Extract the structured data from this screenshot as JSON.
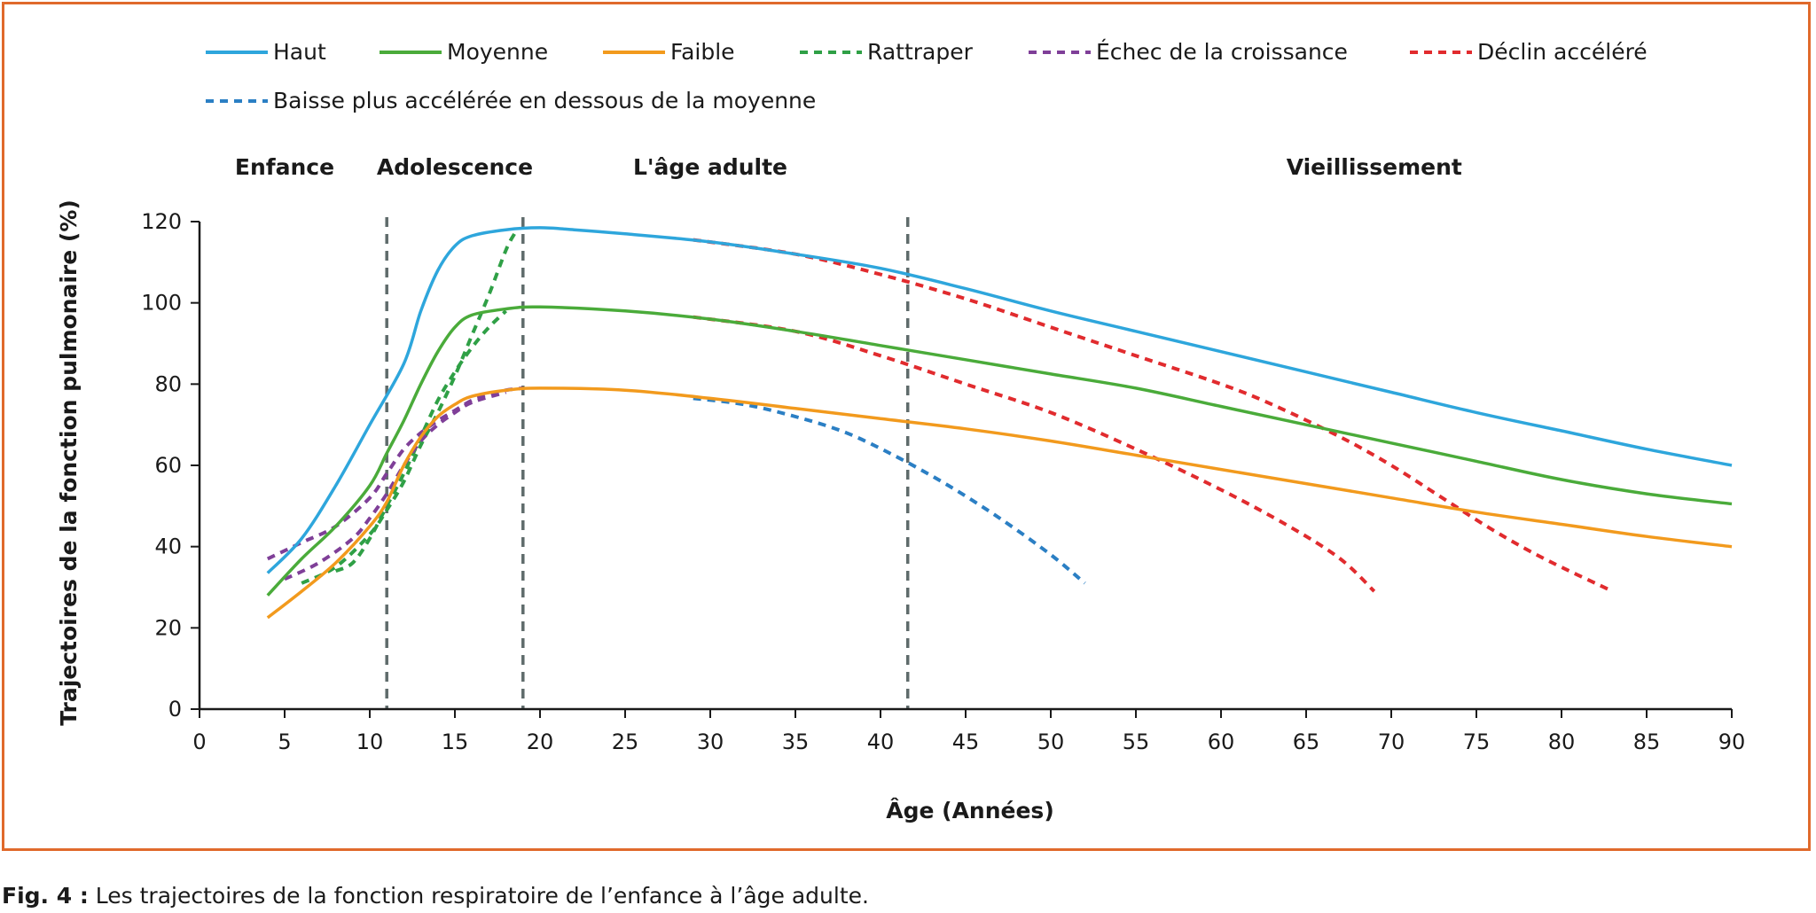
{
  "caption": {
    "label": "Fig. 4 :",
    "text": " Les trajectoires de la fonction respiratoire de l’enfance à l’âge adulte."
  },
  "colors": {
    "frame": "#e06a2c",
    "axis": "#1a1a1a",
    "phase_divider": "#5f6b6b"
  },
  "chart_data": {
    "type": "line",
    "title": "",
    "xlabel": "Âge (Années)",
    "ylabel": "Trajectoires de la fonction pulmonaire (%)",
    "xlim": [
      0,
      90
    ],
    "ylim": [
      0,
      120
    ],
    "xticks": [
      0,
      5,
      10,
      15,
      20,
      25,
      30,
      35,
      40,
      45,
      50,
      55,
      60,
      65,
      70,
      75,
      80,
      85,
      90
    ],
    "yticks": [
      0,
      20,
      40,
      60,
      80,
      100,
      120
    ],
    "grid": false,
    "legend_position": "top",
    "phases": [
      {
        "label": "Enfance",
        "label_x": 5
      },
      {
        "label": "Adolescence",
        "label_x": 15
      },
      {
        "label": "L'âge adulte",
        "label_x": 30
      },
      {
        "label": "Vieillissement",
        "label_x": 69
      }
    ],
    "phase_boundaries": [
      11,
      19,
      41.6
    ],
    "series": [
      {
        "name": "Haut",
        "color": "#2ea6dc",
        "dashed": false,
        "points": [
          [
            4,
            33.5
          ],
          [
            6,
            42
          ],
          [
            8,
            55
          ],
          [
            10,
            70
          ],
          [
            12,
            85
          ],
          [
            13,
            98
          ],
          [
            14,
            108
          ],
          [
            15,
            114
          ],
          [
            16,
            116.5
          ],
          [
            18,
            118
          ],
          [
            20,
            118.5
          ],
          [
            22,
            118
          ],
          [
            25,
            117
          ],
          [
            30,
            115
          ],
          [
            35,
            112
          ],
          [
            40,
            108.5
          ],
          [
            45,
            103.5
          ],
          [
            50,
            98
          ],
          [
            55,
            93
          ],
          [
            60,
            88
          ],
          [
            65,
            83
          ],
          [
            70,
            78
          ],
          [
            75,
            73
          ],
          [
            80,
            68.5
          ],
          [
            85,
            64
          ],
          [
            90,
            60
          ]
        ]
      },
      {
        "name": "Moyenne",
        "color": "#4aab3a",
        "dashed": false,
        "points": [
          [
            4,
            28
          ],
          [
            6,
            37
          ],
          [
            8,
            45
          ],
          [
            10,
            55
          ],
          [
            11,
            63
          ],
          [
            12,
            71
          ],
          [
            13,
            80
          ],
          [
            14,
            88
          ],
          [
            15,
            94
          ],
          [
            16,
            97
          ],
          [
            18,
            98.5
          ],
          [
            20,
            99
          ],
          [
            25,
            98
          ],
          [
            30,
            96
          ],
          [
            35,
            93
          ],
          [
            40,
            89.5
          ],
          [
            45,
            86
          ],
          [
            50,
            82.5
          ],
          [
            55,
            79
          ],
          [
            60,
            74.5
          ],
          [
            65,
            70
          ],
          [
            70,
            65.5
          ],
          [
            75,
            61
          ],
          [
            80,
            56.5
          ],
          [
            85,
            53
          ],
          [
            90,
            50.5
          ]
        ]
      },
      {
        "name": "Faible",
        "color": "#f29a1d",
        "dashed": false,
        "points": [
          [
            4,
            22.5
          ],
          [
            6,
            29
          ],
          [
            8,
            36
          ],
          [
            10,
            45
          ],
          [
            11,
            51
          ],
          [
            12,
            60
          ],
          [
            13,
            67
          ],
          [
            14,
            72
          ],
          [
            15,
            75
          ],
          [
            16,
            77
          ],
          [
            18,
            78.5
          ],
          [
            20,
            79
          ],
          [
            25,
            78.5
          ],
          [
            30,
            76.5
          ],
          [
            35,
            74
          ],
          [
            40,
            71.5
          ],
          [
            45,
            69
          ],
          [
            50,
            66
          ],
          [
            55,
            62.5
          ],
          [
            60,
            59
          ],
          [
            65,
            55.5
          ],
          [
            70,
            52
          ],
          [
            75,
            48.5
          ],
          [
            80,
            45.5
          ],
          [
            85,
            42.5
          ],
          [
            90,
            40
          ]
        ]
      },
      {
        "name": "Rattraper",
        "color": "#2fa046",
        "dashed": true,
        "segments": [
          [
            [
              6,
              31
            ],
            [
              8,
              35
            ],
            [
              10,
              43
            ],
            [
              11,
              49
            ],
            [
              12,
              56
            ],
            [
              13,
              65
            ],
            [
              14,
              73
            ],
            [
              15,
              82
            ],
            [
              16,
              92
            ],
            [
              17,
              102
            ],
            [
              18,
              113
            ],
            [
              18.5,
              117
            ]
          ],
          [
            [
              8,
              34
            ],
            [
              9,
              36
            ],
            [
              10,
              42
            ],
            [
              11,
              50
            ],
            [
              12,
              58
            ],
            [
              13,
              67
            ],
            [
              14,
              76
            ],
            [
              15,
              83
            ],
            [
              16,
              89
            ],
            [
              17,
              94
            ],
            [
              18,
              98
            ]
          ]
        ]
      },
      {
        "name": "Échec de la croissance",
        "color": "#7f3f98",
        "dashed": true,
        "segments": [
          [
            [
              4,
              37
            ],
            [
              6,
              41
            ],
            [
              8,
              45
            ],
            [
              10,
              52
            ],
            [
              11,
              58
            ],
            [
              12,
              64
            ],
            [
              13,
              68
            ],
            [
              14,
              71
            ],
            [
              15,
              73.5
            ],
            [
              16,
              76
            ],
            [
              17,
              77.5
            ],
            [
              18,
              78.5
            ],
            [
              19,
              79
            ]
          ],
          [
            [
              5,
              32
            ],
            [
              7,
              36
            ],
            [
              9,
              42
            ],
            [
              10,
              47
            ],
            [
              11,
              53
            ],
            [
              12,
              60
            ],
            [
              13,
              66
            ],
            [
              14,
              70
            ],
            [
              15,
              73
            ],
            [
              16,
              75.5
            ],
            [
              18,
              78
            ]
          ]
        ]
      },
      {
        "name": "Déclin accéléré",
        "color": "#e12b2e",
        "dashed": true,
        "segments": [
          [
            [
              29,
              115.5
            ],
            [
              35,
              112
            ],
            [
              40,
              107
            ],
            [
              45,
              101
            ],
            [
              50,
              94
            ],
            [
              55,
              87
            ],
            [
              60,
              80
            ],
            [
              63,
              75
            ],
            [
              67,
              67
            ],
            [
              70,
              60
            ],
            [
              73,
              52
            ],
            [
              76,
              44
            ],
            [
              79,
              37
            ],
            [
              83,
              29
            ]
          ],
          [
            [
              29,
              96.5
            ],
            [
              35,
              93
            ],
            [
              40,
              87
            ],
            [
              45,
              80
            ],
            [
              50,
              73
            ],
            [
              55,
              64
            ],
            [
              60,
              54
            ],
            [
              64,
              45
            ],
            [
              67,
              37
            ],
            [
              69,
              29
            ]
          ]
        ]
      },
      {
        "name": "Baisse plus accélérée en dessous de la moyenne",
        "color": "#2b7fc4",
        "dashed": true,
        "segments": [
          [
            [
              29,
              76.5
            ],
            [
              32,
              75
            ],
            [
              35,
              72
            ],
            [
              38,
              68
            ],
            [
              41,
              62
            ],
            [
              44,
              55
            ],
            [
              47,
              47
            ],
            [
              50,
              38
            ],
            [
              52,
              31
            ]
          ]
        ]
      }
    ]
  }
}
